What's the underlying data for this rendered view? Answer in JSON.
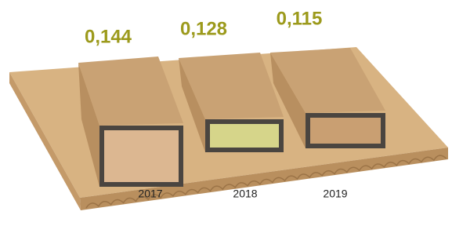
{
  "chart_data": {
    "type": "pictorial",
    "categories": [
      "2017",
      "2018",
      "2019"
    ],
    "values": [
      0.144,
      0.128,
      0.115
    ],
    "value_labels": [
      "0,144",
      "0,128",
      "0,115"
    ],
    "color": "#9c9a1c"
  }
}
